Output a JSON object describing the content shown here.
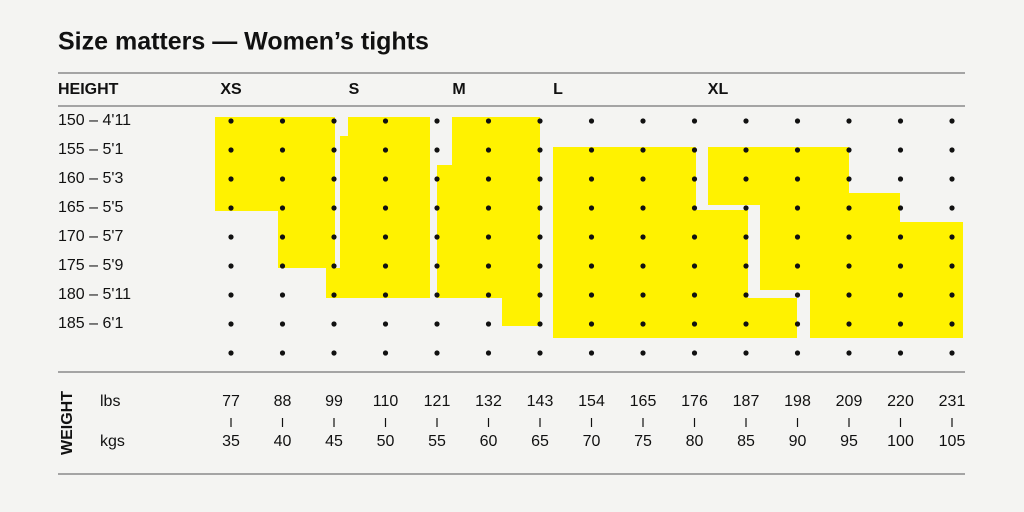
{
  "title": "Size matters — Women’s tights",
  "height_header": "HEIGHT",
  "sizes": [
    "XS",
    "S",
    "M",
    "L",
    "XL"
  ],
  "heights": [
    "150 – 4'11",
    "155 – 5'1",
    "160 – 5'3",
    "165 – 5'5",
    "170 – 5'7",
    "175 – 5'9",
    "180 – 5'11",
    "185 – 6'1"
  ],
  "weight_header": "WEIGHT",
  "lbs_label": "lbs",
  "kgs_label": "kgs",
  "lbs": [
    "77",
    "88",
    "99",
    "110",
    "121",
    "132",
    "143",
    "154",
    "165",
    "176",
    "187",
    "198",
    "209",
    "220",
    "231"
  ],
  "kgs": [
    "35",
    "40",
    "45",
    "50",
    "55",
    "60",
    "65",
    "70",
    "75",
    "80",
    "85",
    "90",
    "95",
    "100",
    "105"
  ]
}
